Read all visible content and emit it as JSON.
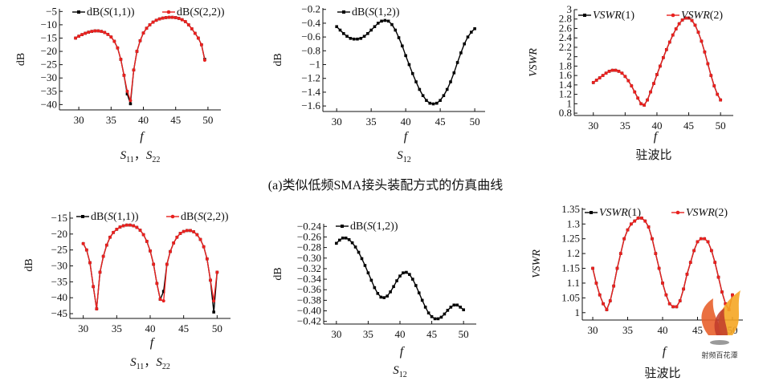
{
  "section_caption": "(a)类似低频SMA接头装配方式的仿真曲线",
  "watermark": {
    "text": "射频百花潭",
    "colors": [
      "#f5a623",
      "#e8612c",
      "#c0392b"
    ]
  },
  "chart_data": [
    {
      "type": "line",
      "ylabel": "dB",
      "xlabel": "f",
      "caption": [
        "S",
        "11",
        "，",
        "S",
        "22"
      ],
      "xlim": [
        27,
        52
      ],
      "xticks": [
        30,
        35,
        40,
        45,
        50
      ],
      "ylim": [
        -42,
        -4
      ],
      "yticks": [
        -40,
        -35,
        -30,
        -25,
        -20,
        -15,
        -10,
        -5
      ],
      "legend": {
        "placement": "top"
      },
      "series": [
        {
          "name": "dB(S(1,1))",
          "color": "#000000",
          "x": [
            29.5,
            30,
            30.5,
            31,
            31.5,
            32,
            32.5,
            33,
            33.5,
            34,
            34.5,
            35,
            35.5,
            36,
            36.5,
            37,
            37.5,
            38,
            38.5,
            39,
            39.5,
            40,
            40.5,
            41,
            41.5,
            42,
            42.5,
            43,
            43.5,
            44,
            44.5,
            45,
            45.5,
            46,
            46.5,
            47,
            47.5,
            48,
            48.5,
            49,
            49.5
          ],
          "values": [
            -15,
            -14.3,
            -13.7,
            -13.2,
            -12.8,
            -12.5,
            -12.3,
            -12.3,
            -12.5,
            -12.9,
            -13.6,
            -14.6,
            -16.2,
            -18.7,
            -23,
            -29,
            -36,
            -39.7,
            -27,
            -20,
            -16,
            -13.1,
            -11.3,
            -10,
            -9,
            -8.3,
            -7.8,
            -7.5,
            -7.3,
            -7.2,
            -7.2,
            -7.3,
            -7.6,
            -8.1,
            -8.8,
            -10,
            -11.5,
            -13.2,
            -15,
            -17.5,
            -23
          ]
        },
        {
          "name": "dB(S(2,2))",
          "color": "#e8211f",
          "x": [
            29.5,
            30,
            30.5,
            31,
            31.5,
            32,
            32.5,
            33,
            33.5,
            34,
            34.5,
            35,
            35.5,
            36,
            36.5,
            37,
            37.5,
            38,
            38.5,
            39,
            39.5,
            40,
            40.5,
            41,
            41.5,
            42,
            42.5,
            43,
            43.5,
            44,
            44.5,
            45,
            45.5,
            46,
            46.5,
            47,
            47.5,
            48,
            48.5,
            49,
            49.5
          ],
          "values": [
            -15,
            -14.3,
            -13.7,
            -13.2,
            -12.8,
            -12.5,
            -12.3,
            -12.3,
            -12.5,
            -12.9,
            -13.6,
            -14.6,
            -16.2,
            -18.7,
            -23,
            -29,
            -35,
            -38.5,
            -27,
            -20,
            -16,
            -13.1,
            -11.3,
            -10,
            -9,
            -8.3,
            -7.8,
            -7.5,
            -7.3,
            -7.2,
            -7.2,
            -7.3,
            -7.6,
            -8.1,
            -8.8,
            -10,
            -11.5,
            -13.2,
            -15,
            -17.5,
            -23.3
          ]
        }
      ]
    },
    {
      "type": "line",
      "ylabel": "dB",
      "xlabel": "f",
      "caption": [
        "S",
        "12"
      ],
      "xlim": [
        28,
        51.5
      ],
      "xticks": [
        30,
        35,
        40,
        45,
        50
      ],
      "ylim": [
        -1.68,
        -0.18
      ],
      "yticks": [
        -1.6,
        -1.4,
        -1.2,
        -1.0,
        -0.8,
        -0.6,
        -0.4,
        -0.2
      ],
      "legend": {
        "placement": "top-left"
      },
      "series": [
        {
          "name": "dB(S(1,2))",
          "color": "#000000",
          "x": [
            30,
            30.5,
            31,
            31.5,
            32,
            32.5,
            33,
            33.5,
            34,
            34.5,
            35,
            35.5,
            36,
            36.5,
            37,
            37.5,
            38,
            38.5,
            39,
            39.5,
            40,
            40.5,
            41,
            41.5,
            42,
            42.5,
            43,
            43.5,
            44,
            44.5,
            45,
            45.5,
            46,
            46.5,
            47,
            47.5,
            48,
            48.5,
            49,
            49.5,
            50
          ],
          "values": [
            -0.45,
            -0.5,
            -0.55,
            -0.59,
            -0.62,
            -0.63,
            -0.63,
            -0.62,
            -0.59,
            -0.55,
            -0.5,
            -0.45,
            -0.4,
            -0.37,
            -0.36,
            -0.37,
            -0.42,
            -0.5,
            -0.61,
            -0.73,
            -0.87,
            -1.0,
            -1.13,
            -1.25,
            -1.36,
            -1.45,
            -1.52,
            -1.56,
            -1.57,
            -1.56,
            -1.52,
            -1.45,
            -1.36,
            -1.25,
            -1.12,
            -0.97,
            -0.83,
            -0.7,
            -0.6,
            -0.53,
            -0.48
          ]
        }
      ]
    },
    {
      "type": "line",
      "ylabel": "VSWR",
      "xlabel": "f",
      "caption": [
        "驻波比"
      ],
      "xlim": [
        27,
        52
      ],
      "xticks": [
        30,
        35,
        40,
        45,
        50
      ],
      "ylim": [
        0.75,
        3.0
      ],
      "yticks": [
        0.8,
        1.0,
        1.2,
        1.4,
        1.6,
        1.8,
        2.0,
        2.2,
        2.4,
        2.6,
        2.8,
        3.0
      ],
      "legend": {
        "placement": "top"
      },
      "series": [
        {
          "name": "VSWR(1)",
          "color": "#000000",
          "x": [
            30,
            30.5,
            31,
            31.5,
            32,
            32.5,
            33,
            33.5,
            34,
            34.5,
            35,
            35.5,
            36,
            36.5,
            37,
            37.5,
            38,
            38.5,
            39,
            39.5,
            40,
            40.5,
            41,
            41.5,
            42,
            42.5,
            43,
            43.5,
            44,
            44.5,
            45,
            45.5,
            46,
            46.5,
            47,
            47.5,
            48,
            48.5,
            49,
            49.5,
            50
          ],
          "values": [
            1.45,
            1.5,
            1.55,
            1.6,
            1.65,
            1.69,
            1.71,
            1.71,
            1.69,
            1.65,
            1.58,
            1.49,
            1.38,
            1.25,
            1.12,
            1.0,
            0.97,
            1.08,
            1.25,
            1.43,
            1.62,
            1.8,
            1.98,
            2.15,
            2.31,
            2.46,
            2.59,
            2.7,
            2.78,
            2.82,
            2.82,
            2.77,
            2.67,
            2.52,
            2.33,
            2.1,
            1.85,
            1.6,
            1.38,
            1.2,
            1.08
          ]
        },
        {
          "name": "VSWR(2)",
          "color": "#e8211f",
          "x": [
            30,
            30.5,
            31,
            31.5,
            32,
            32.5,
            33,
            33.5,
            34,
            34.5,
            35,
            35.5,
            36,
            36.5,
            37,
            37.5,
            38,
            38.5,
            39,
            39.5,
            40,
            40.5,
            41,
            41.5,
            42,
            42.5,
            43,
            43.5,
            44,
            44.5,
            45,
            45.5,
            46,
            46.5,
            47,
            47.5,
            48,
            48.5,
            49,
            49.5,
            50
          ],
          "values": [
            1.45,
            1.5,
            1.55,
            1.6,
            1.65,
            1.69,
            1.71,
            1.71,
            1.69,
            1.65,
            1.58,
            1.49,
            1.38,
            1.25,
            1.12,
            1.0,
            0.97,
            1.08,
            1.25,
            1.43,
            1.62,
            1.8,
            1.98,
            2.15,
            2.31,
            2.46,
            2.59,
            2.7,
            2.78,
            2.82,
            2.82,
            2.77,
            2.67,
            2.52,
            2.33,
            2.1,
            1.85,
            1.6,
            1.38,
            1.2,
            1.08
          ]
        }
      ]
    },
    {
      "type": "line",
      "ylabel": "dB",
      "xlabel": "f",
      "caption": [
        "S",
        "11",
        "，",
        "S",
        "22"
      ],
      "xlim": [
        28,
        52
      ],
      "xticks": [
        30,
        35,
        40,
        45,
        50
      ],
      "ylim": [
        -46.5,
        -13
      ],
      "yticks": [
        -45,
        -40,
        -35,
        -30,
        -25,
        -20,
        -15
      ],
      "legend": {
        "placement": "top"
      },
      "series": [
        {
          "name": "dB(S(1,1))",
          "color": "#000000",
          "x": [
            30,
            30.5,
            31,
            31.5,
            32,
            32.5,
            33,
            33.5,
            34,
            34.5,
            35,
            35.5,
            36,
            36.5,
            37,
            37.5,
            38,
            38.5,
            39,
            39.5,
            40,
            40.5,
            41,
            41.5,
            42,
            42.5,
            43,
            43.5,
            44,
            44.5,
            45,
            45.5,
            46,
            46.5,
            47,
            47.5,
            48,
            48.5,
            49,
            49.5,
            50
          ],
          "values": [
            -23,
            -25,
            -29,
            -36.5,
            -43.5,
            -32,
            -27,
            -23.5,
            -21,
            -19.5,
            -18.5,
            -17.8,
            -17.4,
            -17.2,
            -17.2,
            -17.4,
            -17.9,
            -18.8,
            -20.2,
            -22.3,
            -25.3,
            -29.5,
            -35.5,
            -40.5,
            -38,
            -29.5,
            -25.5,
            -22.8,
            -21,
            -19.8,
            -19.2,
            -18.9,
            -18.9,
            -19.3,
            -20.2,
            -21.7,
            -24,
            -27.8,
            -34.5,
            -44.5,
            -32
          ]
        },
        {
          "name": "dB(S(2,2))",
          "color": "#e8211f",
          "x": [
            30,
            30.5,
            31,
            31.5,
            32,
            32.5,
            33,
            33.5,
            34,
            34.5,
            35,
            35.5,
            36,
            36.5,
            37,
            37.5,
            38,
            38.5,
            39,
            39.5,
            40,
            40.5,
            41,
            41.5,
            42,
            42.5,
            43,
            43.5,
            44,
            44.5,
            45,
            45.5,
            46,
            46.5,
            47,
            47.5,
            48,
            48.5,
            49,
            49.5,
            50
          ],
          "values": [
            -23,
            -25,
            -29,
            -36.5,
            -43.5,
            -32,
            -27,
            -23.5,
            -21,
            -19.5,
            -18.5,
            -17.8,
            -17.4,
            -17.2,
            -17.2,
            -17.4,
            -17.9,
            -18.8,
            -20.2,
            -22.3,
            -25.3,
            -29.5,
            -35.5,
            -40.5,
            -41,
            -29.5,
            -25.5,
            -22.8,
            -21,
            -19.8,
            -19.2,
            -18.9,
            -18.9,
            -19.3,
            -20.2,
            -21.7,
            -24,
            -27.8,
            -34.5,
            -41,
            -32
          ]
        }
      ]
    },
    {
      "type": "line",
      "ylabel": "dB",
      "xlabel": "f",
      "caption": [
        "S",
        "12"
      ],
      "xlim": [
        28,
        52
      ],
      "xticks": [
        30,
        35,
        40,
        45,
        50
      ],
      "ylim": [
        -0.425,
        -0.235
      ],
      "yticks": [
        -0.42,
        -0.4,
        -0.38,
        -0.36,
        -0.34,
        -0.32,
        -0.3,
        -0.28,
        -0.26,
        -0.24
      ],
      "legend": {
        "placement": "top"
      },
      "series": [
        {
          "name": "dB(S(1,2))",
          "color": "#000000",
          "x": [
            30,
            30.5,
            31,
            31.5,
            32,
            32.5,
            33,
            33.5,
            34,
            34.5,
            35,
            35.5,
            36,
            36.5,
            37,
            37.5,
            38,
            38.5,
            39,
            39.5,
            40,
            40.5,
            41,
            41.5,
            42,
            42.5,
            43,
            43.5,
            44,
            44.5,
            45,
            45.5,
            46,
            46.5,
            47,
            47.5,
            48,
            48.5,
            49,
            49.5,
            50
          ],
          "values": [
            -0.272,
            -0.266,
            -0.262,
            -0.262,
            -0.265,
            -0.271,
            -0.279,
            -0.289,
            -0.301,
            -0.314,
            -0.328,
            -0.342,
            -0.356,
            -0.367,
            -0.374,
            -0.375,
            -0.372,
            -0.364,
            -0.354,
            -0.343,
            -0.334,
            -0.328,
            -0.327,
            -0.331,
            -0.34,
            -0.352,
            -0.366,
            -0.38,
            -0.393,
            -0.404,
            -0.411,
            -0.415,
            -0.415,
            -0.412,
            -0.406,
            -0.399,
            -0.393,
            -0.389,
            -0.389,
            -0.393,
            -0.398
          ]
        }
      ]
    },
    {
      "type": "line",
      "ylabel": "VSWR",
      "xlabel": "f",
      "caption": [
        "驻波比"
      ],
      "xlim": [
        28.5,
        51.5
      ],
      "xticks": [
        30,
        35,
        40,
        45,
        50
      ],
      "ylim": [
        0.975,
        1.355
      ],
      "yticks": [
        1.0,
        1.05,
        1.1,
        1.15,
        1.2,
        1.25,
        1.3,
        1.35
      ],
      "legend": {
        "placement": "top"
      },
      "series": [
        {
          "name": "VSWR(1)",
          "color": "#000000",
          "x": [
            30,
            30.5,
            31,
            31.5,
            32,
            32.5,
            33,
            33.5,
            34,
            34.5,
            35,
            35.5,
            36,
            36.5,
            37,
            37.5,
            38,
            38.5,
            39,
            39.5,
            40,
            40.5,
            41,
            41.5,
            42,
            42.5,
            43,
            43.5,
            44,
            44.5,
            45,
            45.5,
            46,
            46.5,
            47,
            47.5,
            48,
            48.5,
            49,
            49.5,
            50
          ],
          "values": [
            1.15,
            1.1,
            1.06,
            1.03,
            1.01,
            1.04,
            1.09,
            1.15,
            1.2,
            1.25,
            1.28,
            1.3,
            1.31,
            1.32,
            1.32,
            1.31,
            1.29,
            1.25,
            1.2,
            1.15,
            1.1,
            1.06,
            1.03,
            1.02,
            1.02,
            1.04,
            1.08,
            1.13,
            1.17,
            1.21,
            1.24,
            1.25,
            1.25,
            1.24,
            1.21,
            1.17,
            1.12,
            1.07,
            1.03,
            1.01,
            1.06
          ]
        },
        {
          "name": "VSWR(2)",
          "color": "#e8211f",
          "x": [
            30,
            30.5,
            31,
            31.5,
            32,
            32.5,
            33,
            33.5,
            34,
            34.5,
            35,
            35.5,
            36,
            36.5,
            37,
            37.5,
            38,
            38.5,
            39,
            39.5,
            40,
            40.5,
            41,
            41.5,
            42,
            42.5,
            43,
            43.5,
            44,
            44.5,
            45,
            45.5,
            46,
            46.5,
            47,
            47.5,
            48,
            48.5,
            49,
            49.5,
            50
          ],
          "values": [
            1.15,
            1.1,
            1.06,
            1.03,
            1.01,
            1.04,
            1.09,
            1.15,
            1.2,
            1.25,
            1.28,
            1.3,
            1.31,
            1.32,
            1.32,
            1.31,
            1.29,
            1.25,
            1.2,
            1.15,
            1.1,
            1.06,
            1.03,
            1.02,
            1.02,
            1.04,
            1.08,
            1.13,
            1.17,
            1.21,
            1.24,
            1.25,
            1.25,
            1.24,
            1.21,
            1.17,
            1.12,
            1.07,
            1.03,
            1.01,
            1.06
          ]
        }
      ]
    }
  ]
}
